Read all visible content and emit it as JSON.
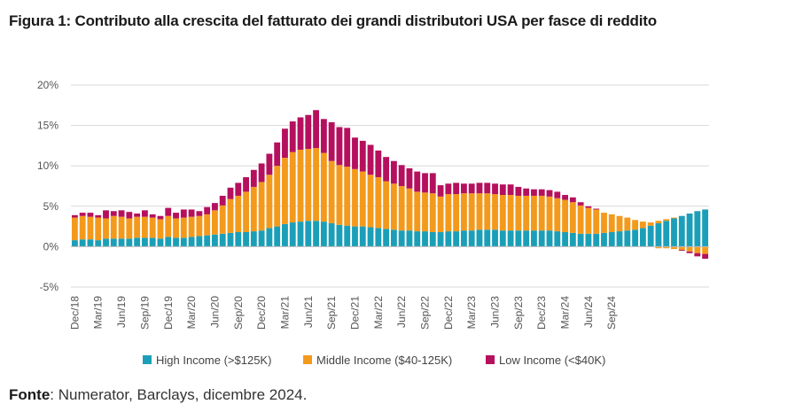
{
  "title": "Figura 1: Contributo alla crescita del fatturato dei grandi distributori USA per fasce di reddito",
  "source": {
    "label": "Fonte",
    "text": ": Numerator, Barclays, dicembre 2024."
  },
  "colors": {
    "high": "#1b9fb8",
    "middle": "#f39a1c",
    "low": "#b5105e",
    "grid": "#d9d9d9",
    "axis": "#bfbfbf"
  },
  "chart_data": {
    "type": "bar",
    "stacked": true,
    "ylim": [
      -5,
      20
    ],
    "yticks": [
      -5,
      0,
      5,
      10,
      15,
      20
    ],
    "ytick_labels": [
      "-5%",
      "0%",
      "5%",
      "10%",
      "15%",
      "20%"
    ],
    "xtick_labels": [
      "Dec/18",
      "Mar/19",
      "Jun/19",
      "Sep/19",
      "Dec/19",
      "Mar/20",
      "Jun/20",
      "Sep/20",
      "Dec/20",
      "Mar/21",
      "Jun/21",
      "Sep/21",
      "Dec/21",
      "Mar/22",
      "Jun/22",
      "Sep/22",
      "Dec/22",
      "Mar/23",
      "Jun/23",
      "Sep/23",
      "Dec/23",
      "Mar/24",
      "Jun/24",
      "Sep/24"
    ],
    "legend_position": "bottom",
    "series": [
      {
        "name": "High Income (>$125K)",
        "key": "high",
        "values": [
          0.8,
          0.9,
          0.9,
          0.8,
          1.0,
          1.0,
          1.0,
          1.0,
          1.1,
          1.1,
          1.1,
          1.0,
          1.2,
          1.1,
          1.1,
          1.2,
          1.3,
          1.4,
          1.5,
          1.6,
          1.7,
          1.8,
          1.8,
          1.9,
          2.0,
          2.3,
          2.5,
          2.8,
          3.0,
          3.1,
          3.2,
          3.2,
          3.1,
          2.9,
          2.7,
          2.6,
          2.5,
          2.5,
          2.4,
          2.3,
          2.2,
          2.1,
          2.0,
          2.0,
          1.9,
          1.9,
          1.8,
          1.8,
          1.9,
          1.9,
          2.0,
          2.0,
          2.1,
          2.1,
          2.1,
          2.0,
          2.0,
          2.0,
          2.0,
          2.0,
          2.0,
          2.0,
          1.9,
          1.8,
          1.7,
          1.6,
          1.6,
          1.6,
          1.7,
          1.8,
          1.9,
          2.0,
          2.1,
          2.3,
          2.6,
          2.9,
          3.2,
          3.5,
          3.8,
          4.1,
          4.4,
          4.6
        ]
      },
      {
        "name": "Middle Income ($40-125K)",
        "key": "middle",
        "values": [
          2.8,
          2.9,
          2.8,
          2.8,
          2.5,
          2.8,
          2.7,
          2.5,
          2.6,
          2.6,
          2.5,
          2.4,
          2.6,
          2.4,
          2.5,
          2.5,
          2.5,
          2.6,
          3.0,
          3.5,
          4.2,
          4.5,
          5.0,
          5.5,
          6.0,
          6.6,
          7.5,
          8.2,
          8.7,
          8.9,
          8.9,
          9.0,
          8.5,
          7.7,
          7.4,
          7.3,
          7.1,
          6.8,
          6.5,
          6.3,
          5.9,
          5.7,
          5.5,
          5.2,
          4.9,
          4.8,
          4.8,
          4.4,
          4.6,
          4.6,
          4.6,
          4.6,
          4.5,
          4.5,
          4.4,
          4.4,
          4.4,
          4.3,
          4.3,
          4.3,
          4.3,
          4.2,
          4.1,
          4.0,
          3.8,
          3.5,
          3.2,
          3.0,
          2.5,
          2.2,
          1.9,
          1.6,
          1.2,
          0.8,
          0.4,
          0.3,
          0.2,
          0.1,
          0.0,
          0.0,
          0.0,
          0.0
        ]
      },
      {
        "name": "Low Income (<$40K)",
        "key": "low",
        "values": [
          0.3,
          0.4,
          0.5,
          0.3,
          1.0,
          0.6,
          0.8,
          0.8,
          0.4,
          0.8,
          0.4,
          0.4,
          1.0,
          0.7,
          1.0,
          0.9,
          0.6,
          0.9,
          0.9,
          1.2,
          1.4,
          1.6,
          1.8,
          2.1,
          2.3,
          2.6,
          2.9,
          3.6,
          3.8,
          4.0,
          4.2,
          4.7,
          4.2,
          4.8,
          4.7,
          4.8,
          3.9,
          3.8,
          3.7,
          3.3,
          3.0,
          2.8,
          2.6,
          2.5,
          2.5,
          2.4,
          2.5,
          1.4,
          1.3,
          1.4,
          1.2,
          1.2,
          1.3,
          1.3,
          1.3,
          1.3,
          1.3,
          1.1,
          0.9,
          0.8,
          0.8,
          0.8,
          0.8,
          0.6,
          0.6,
          0.4,
          0.2,
          0.1,
          0.0,
          0.0,
          0.0,
          0.0,
          0.0,
          0.0,
          0.0,
          0.0,
          0.0,
          0.0,
          0.0,
          0.0,
          0.0,
          0.0
        ]
      }
    ],
    "negative_series": [
      {
        "key": "middle",
        "values": [
          0,
          0,
          0,
          0,
          0,
          0,
          0,
          0,
          0,
          0,
          0,
          0,
          0,
          0,
          0,
          0,
          0,
          0,
          0,
          0,
          0,
          0,
          0,
          0,
          0,
          0,
          0,
          0,
          0,
          0,
          0,
          0,
          0,
          0,
          0,
          0,
          0,
          0,
          0,
          0,
          0,
          0,
          0,
          0,
          0,
          0,
          0,
          0,
          0,
          0,
          0,
          0,
          0,
          0,
          0,
          0,
          0,
          0,
          0,
          0,
          0,
          0,
          0,
          0,
          0,
          0,
          0,
          0,
          0,
          0,
          0,
          0,
          0,
          0,
          0,
          -0.2,
          -0.2,
          -0.3,
          -0.4,
          -0.6,
          -0.8,
          -0.9
        ]
      },
      {
        "key": "low",
        "values": [
          0,
          0,
          0,
          0,
          0,
          0,
          0,
          0,
          0,
          0,
          0,
          0,
          0,
          0,
          0,
          0,
          0,
          0,
          0,
          0,
          0,
          0,
          0,
          0,
          0,
          0,
          0,
          0,
          0,
          0,
          0,
          0,
          0,
          0,
          0,
          0,
          0,
          0,
          0,
          0,
          0,
          0,
          0,
          0,
          0,
          0,
          0,
          0,
          0,
          0,
          0,
          0,
          0,
          0,
          0,
          0,
          0,
          0,
          0,
          0,
          0,
          0,
          0,
          0,
          0,
          0,
          0,
          0,
          0,
          0,
          0,
          0,
          0,
          0,
          0,
          0,
          0,
          0,
          -0.1,
          -0.2,
          -0.4,
          -0.6
        ]
      }
    ]
  }
}
